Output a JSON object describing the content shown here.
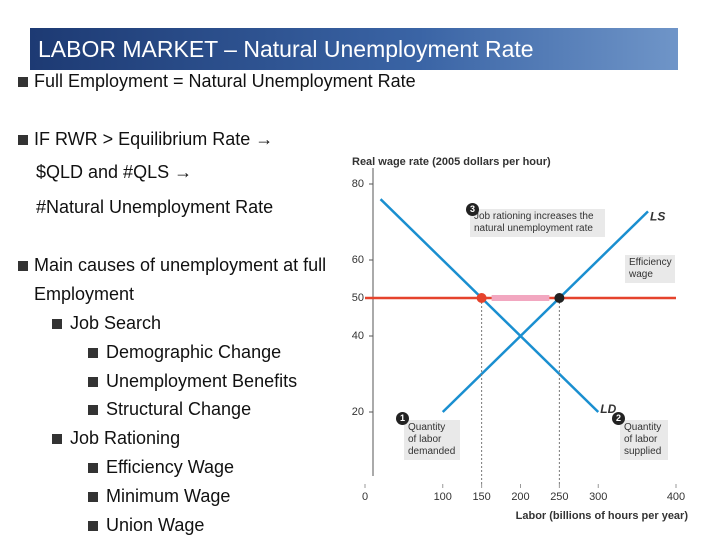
{
  "header": {
    "title": "LABOR MARKET – Natural Unemployment Rate"
  },
  "bullets": [
    "Full Employment = Natural Unemployment Rate",
    "IF RWR > Equilibrium Rate →",
    "$QLD and #QLS →",
    "#Natural Unemployment Rate",
    "Main causes of unemployment at full Employment",
    "Job Search",
    "Demographic Change",
    "Unemployment Benefits",
    "Structural Change",
    "Job Rationing",
    "Efficiency Wage",
    "Minimum Wage",
    "Union Wage"
  ],
  "chart_data": {
    "type": "line",
    "ylabel": "Real wage rate (2005 dollars per hour)",
    "xlabel": "Labor (billions of hours per year)",
    "xlim": [
      0,
      400
    ],
    "ylim": [
      0,
      80
    ],
    "xticks": [
      0,
      100,
      150,
      200,
      250,
      300,
      400
    ],
    "yticks": [
      20,
      40,
      50,
      60,
      80
    ],
    "series": [
      {
        "name": "LS",
        "color": "#1a8fd0",
        "x": [
          100,
          364
        ],
        "values": [
          20,
          72.8
        ]
      },
      {
        "name": "LD",
        "color": "#1a8fd0",
        "x": [
          20,
          300
        ],
        "values": [
          76,
          20
        ]
      },
      {
        "name": "Efficiency wage",
        "color": "#e5432c",
        "x": [
          0,
          400
        ],
        "values": [
          50,
          50
        ]
      }
    ],
    "points": [
      {
        "x": 150,
        "y": 50,
        "color": "#e5432c"
      },
      {
        "x": 250,
        "y": 50,
        "color": "#222222"
      }
    ],
    "annotations": [
      {
        "marker": "3",
        "text": "Job rationing increases the natural unemployment rate"
      },
      {
        "marker": "1",
        "text": "Quantity of labor demanded"
      },
      {
        "marker": "2",
        "text": "Quantity of labor supplied"
      }
    ]
  }
}
